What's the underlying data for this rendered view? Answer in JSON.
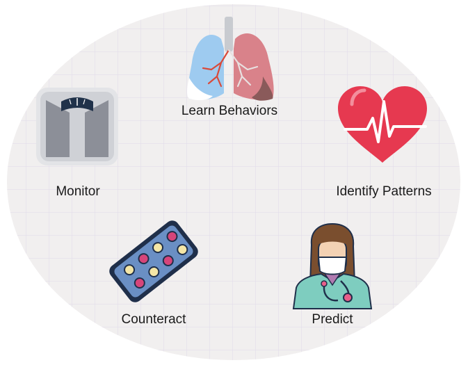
{
  "nodes": {
    "learn": {
      "label": "Learn Behaviors",
      "icon": "lungs-icon"
    },
    "monitor": {
      "label": "Monitor",
      "icon": "weight-scale-icon"
    },
    "identify": {
      "label": "Identify Patterns",
      "icon": "heartbeat-icon"
    },
    "counteract": {
      "label": "Counteract",
      "icon": "pill-blister-icon"
    },
    "predict": {
      "label": "Predict",
      "icon": "doctor-icon"
    }
  },
  "colors": {
    "oval_fill": "#f1efef",
    "grid_line": "#e2ddea",
    "heart": "#e63950",
    "lung_left": "#9ecbf0",
    "lung_right": "#d9828a",
    "pill_pack": "#6a8fc4",
    "scale_body": "#8c8f98",
    "doctor_coat": "#7ecdbf"
  }
}
